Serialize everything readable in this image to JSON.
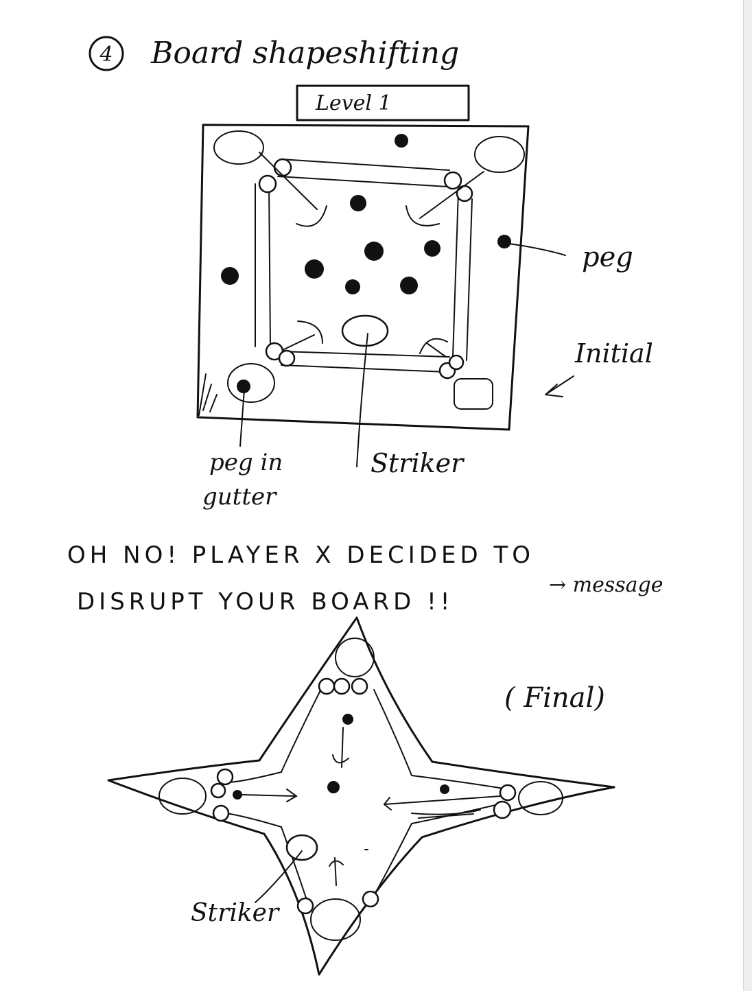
{
  "title": {
    "number": "4",
    "text": "Board shapeshifting"
  },
  "level_tab": "Level 1",
  "labels": {
    "peg": "peg",
    "initial": "Initial",
    "peg_in_gutter_line1": "peg in",
    "peg_in_gutter_line2": "gutter",
    "striker_top": "Striker",
    "striker_bottom": "Striker",
    "message_note": "→ message",
    "final": "( Final)"
  },
  "message": {
    "line1": "OH NO! PLAYER X DECIDED TO",
    "line2": "DISRUPT YOUR BOARD !!"
  },
  "colors": {
    "ink": "#111111",
    "paper": "#ffffff"
  }
}
